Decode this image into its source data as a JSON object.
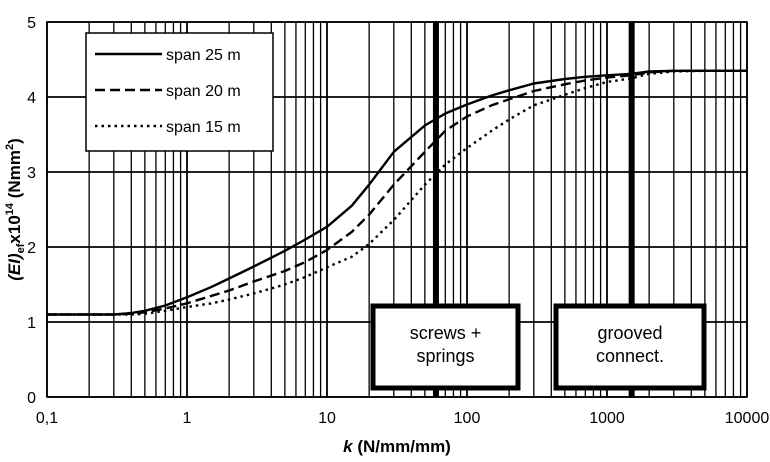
{
  "chart_data": {
    "type": "line",
    "x_scale": "log",
    "xlim": [
      0.1,
      10000
    ],
    "ylim": [
      0,
      5
    ],
    "xticks": [
      "0,1",
      "1",
      "10",
      "100",
      "1000",
      "10000"
    ],
    "yticks": [
      "0",
      "1",
      "2",
      "3",
      "4",
      "5"
    ],
    "xlabel": {
      "italic": "k",
      "rest": " (N/mm/mm)"
    },
    "ylabel": {
      "a": "(EI)",
      "b": "ef",
      "c": "x10",
      "d": "14",
      "e": " (Nmm",
      "f": "2",
      "g": ")"
    },
    "grid": "minor-log-x, major-y",
    "legend_position": "top-left",
    "series": [
      {
        "name": "span 25 m",
        "style": "solid",
        "x": [
          0.1,
          0.2,
          0.3,
          0.4,
          0.5,
          0.7,
          1,
          1.5,
          2,
          3,
          5,
          7,
          10,
          15,
          20,
          30,
          50,
          70,
          100,
          150,
          200,
          300,
          500,
          700,
          1000,
          1500,
          2000,
          3000,
          5000,
          10000
        ],
        "y": [
          1.1,
          1.1,
          1.1,
          1.12,
          1.15,
          1.22,
          1.33,
          1.47,
          1.58,
          1.74,
          1.95,
          2.1,
          2.27,
          2.55,
          2.83,
          3.27,
          3.62,
          3.78,
          3.9,
          4.02,
          4.09,
          4.18,
          4.24,
          4.27,
          4.29,
          4.31,
          4.34,
          4.35,
          4.35,
          4.35
        ]
      },
      {
        "name": "span 20 m",
        "style": "dashed",
        "x": [
          0.1,
          0.2,
          0.3,
          0.4,
          0.5,
          0.7,
          1,
          1.5,
          2,
          3,
          5,
          7,
          10,
          15,
          20,
          30,
          50,
          70,
          100,
          150,
          200,
          300,
          500,
          700,
          1000,
          1500,
          2000,
          3000,
          5000,
          10000
        ],
        "y": [
          1.1,
          1.1,
          1.1,
          1.11,
          1.13,
          1.18,
          1.25,
          1.35,
          1.42,
          1.54,
          1.68,
          1.8,
          1.96,
          2.2,
          2.43,
          2.83,
          3.27,
          3.55,
          3.74,
          3.89,
          3.97,
          4.08,
          4.17,
          4.22,
          4.26,
          4.29,
          4.33,
          4.35,
          4.35,
          4.35
        ]
      },
      {
        "name": "span 15 m",
        "style": "dotted",
        "x": [
          0.1,
          0.2,
          0.3,
          0.4,
          0.5,
          0.7,
          1,
          1.5,
          2,
          3,
          5,
          7,
          10,
          15,
          20,
          30,
          50,
          70,
          100,
          150,
          200,
          300,
          500,
          700,
          1000,
          1500,
          2000,
          3000,
          5000,
          10000
        ],
        "y": [
          1.1,
          1.1,
          1.1,
          1.1,
          1.11,
          1.15,
          1.2,
          1.25,
          1.3,
          1.38,
          1.5,
          1.6,
          1.73,
          1.87,
          2.04,
          2.36,
          2.83,
          3.1,
          3.32,
          3.55,
          3.7,
          3.89,
          4.03,
          4.12,
          4.2,
          4.25,
          4.31,
          4.34,
          4.35,
          4.35
        ]
      }
    ],
    "reference_lines": [
      {
        "x": 60
      },
      {
        "x": 1500
      }
    ],
    "annotations": [
      {
        "lines": [
          "screws +",
          "springs"
        ]
      },
      {
        "lines": [
          "grooved",
          "connect."
        ]
      }
    ]
  }
}
